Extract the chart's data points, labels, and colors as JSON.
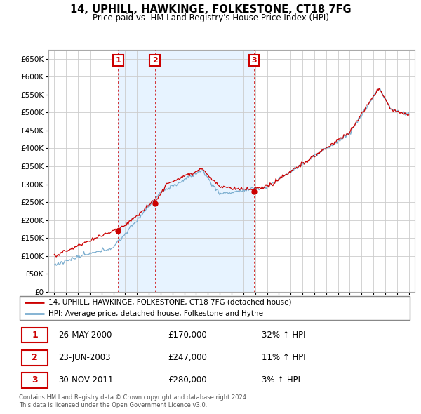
{
  "title": "14, UPHILL, HAWKINGE, FOLKESTONE, CT18 7FG",
  "subtitle": "Price paid vs. HM Land Registry's House Price Index (HPI)",
  "legend_line1": "14, UPHILL, HAWKINGE, FOLKESTONE, CT18 7FG (detached house)",
  "legend_line2": "HPI: Average price, detached house, Folkestone and Hythe",
  "footer1": "Contains HM Land Registry data © Crown copyright and database right 2024.",
  "footer2": "This data is licensed under the Open Government Licence v3.0.",
  "transactions": [
    {
      "label": "1",
      "date": "26-MAY-2000",
      "price": 170000,
      "pct": "32%",
      "direction": "↑",
      "ref": "HPI"
    },
    {
      "label": "2",
      "date": "23-JUN-2003",
      "price": 247000,
      "pct": "11%",
      "direction": "↑",
      "ref": "HPI"
    },
    {
      "label": "3",
      "date": "30-NOV-2011",
      "price": 280000,
      "pct": "3%",
      "direction": "↑",
      "ref": "HPI"
    }
  ],
  "transaction_years": [
    2000.4,
    2003.5,
    2011.9
  ],
  "transaction_prices": [
    170000,
    247000,
    280000
  ],
  "red_line_color": "#cc0000",
  "blue_line_color": "#7aadcf",
  "shade_color": "#ddeeff",
  "grid_color": "#cccccc",
  "marker_label_box_color": "#cc0000",
  "ylim": [
    0,
    675000
  ],
  "yticks": [
    0,
    50000,
    100000,
    150000,
    200000,
    250000,
    300000,
    350000,
    400000,
    450000,
    500000,
    550000,
    600000,
    650000
  ],
  "xlim_start": 1994.5,
  "xlim_end": 2025.5,
  "xticks": [
    1995,
    1996,
    1997,
    1998,
    1999,
    2000,
    2001,
    2002,
    2003,
    2004,
    2005,
    2006,
    2007,
    2008,
    2009,
    2010,
    2011,
    2012,
    2013,
    2014,
    2015,
    2016,
    2017,
    2018,
    2019,
    2020,
    2021,
    2022,
    2023,
    2024,
    2025
  ]
}
